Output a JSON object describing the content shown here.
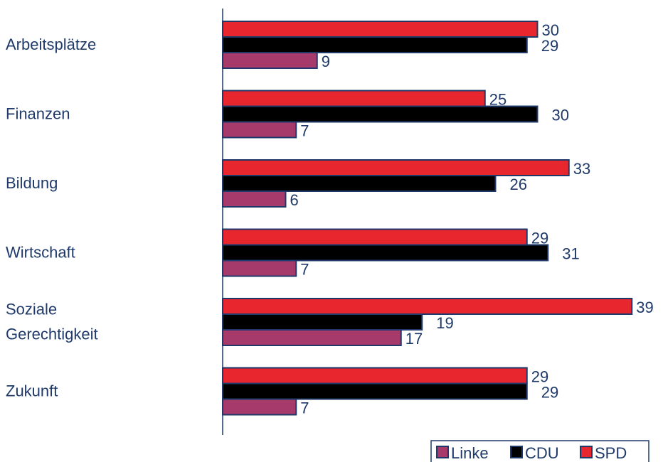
{
  "chart_data": {
    "type": "bar",
    "orientation": "horizontal",
    "title": "",
    "xlabel": "",
    "ylabel": "",
    "grid": false,
    "legend_position": "bottom-right",
    "categories": [
      "Arbeitsplätze",
      "Finanzen",
      "Bildung",
      "Wirtschaft",
      "Soziale Gerechtigkeit",
      "Zukunft"
    ],
    "series": [
      {
        "name": "SPD",
        "color": "#e8262d",
        "values": [
          30,
          25,
          33,
          29,
          39,
          29
        ]
      },
      {
        "name": "CDU",
        "color": "#000000",
        "values": [
          29,
          30,
          26,
          31,
          19,
          29
        ]
      },
      {
        "name": "Linke",
        "color": "#a63a6a",
        "values": [
          9,
          7,
          6,
          7,
          17,
          7
        ]
      }
    ],
    "legend_order": [
      "Linke",
      "CDU",
      "SPD"
    ],
    "xlim": [
      0,
      40
    ]
  },
  "colors": {
    "label_text": "#1f3a6a",
    "axis": "#1f3a6a",
    "bar_outline": "#1f3a6a"
  }
}
